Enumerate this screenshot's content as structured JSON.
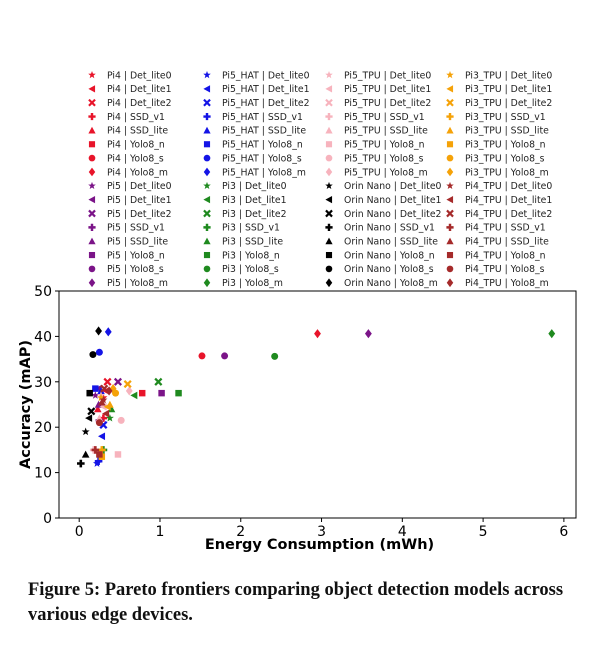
{
  "caption": "Figure 5: Pareto frontiers comparing object detection models across various edge devices.",
  "chart_data": {
    "type": "scatter",
    "xlabel": "Energy Consumption (mWh)",
    "ylabel": "Accuracy (mAP)",
    "xlim": [
      -0.25,
      6.15
    ],
    "ylim": [
      0,
      50
    ],
    "xticks": [
      0,
      1,
      2,
      3,
      4,
      5,
      6
    ],
    "yticks": [
      0,
      10,
      20,
      30,
      40,
      50
    ],
    "grid": false,
    "legend_placement": "top, outside plot, 4 columns",
    "models": [
      "Det_lite0",
      "Det_lite1",
      "Det_lite2",
      "SSD_v1",
      "SSD_lite",
      "Yolo8_n",
      "Yolo8_s",
      "Yolo8_m"
    ],
    "marker_styles": [
      "star",
      "triangle-left",
      "x-mark",
      "plus",
      "triangle-up",
      "square",
      "circle",
      "diamond"
    ],
    "series": [
      {
        "name": "Pi4 | Det_lite0",
        "color": "#e8142a",
        "marker": "star",
        "x": [
          0.3
        ],
        "y": [
          26.5
        ]
      },
      {
        "name": "Pi4 | Det_lite1",
        "color": "#e8142a",
        "marker": "triangle-left",
        "x": [
          0.33
        ],
        "y": [
          28.0
        ]
      },
      {
        "name": "Pi4 | Det_lite2",
        "color": "#e8142a",
        "marker": "x-mark",
        "x": [
          0.35
        ],
        "y": [
          30.0
        ]
      },
      {
        "name": "Pi4 | SSD_v1",
        "color": "#e8142a",
        "marker": "plus",
        "x": [
          0.3
        ],
        "y": [
          22.0
        ]
      },
      {
        "name": "Pi4 | SSD_lite",
        "color": "#e8142a",
        "marker": "triangle-up",
        "x": [
          0.23
        ],
        "y": [
          24.0
        ]
      },
      {
        "name": "Pi4 | Yolo8_n",
        "color": "#e8142a",
        "marker": "square",
        "x": [
          0.78
        ],
        "y": [
          27.5
        ]
      },
      {
        "name": "Pi4 | Yolo8_s",
        "color": "#e8142a",
        "marker": "circle",
        "x": [
          1.52
        ],
        "y": [
          35.7
        ]
      },
      {
        "name": "Pi4 | Yolo8_m",
        "color": "#e8142a",
        "marker": "diamond",
        "x": [
          2.95
        ],
        "y": [
          40.6
        ]
      },
      {
        "name": "Pi5 | Det_lite0",
        "color": "#7b1488",
        "marker": "star",
        "x": [
          0.2
        ],
        "y": [
          27.0
        ]
      },
      {
        "name": "Pi5 | Det_lite1",
        "color": "#7b1488",
        "marker": "triangle-left",
        "x": [
          0.24
        ],
        "y": [
          28.5
        ]
      },
      {
        "name": "Pi5 | Det_lite2",
        "color": "#7b1488",
        "marker": "x-mark",
        "x": [
          0.48
        ],
        "y": [
          30.0
        ]
      },
      {
        "name": "Pi5 | SSD_v1",
        "color": "#7b1488",
        "marker": "plus",
        "x": [
          0.25
        ],
        "y": [
          21.5
        ]
      },
      {
        "name": "Pi5 | SSD_lite",
        "color": "#7b1488",
        "marker": "triangle-up",
        "x": [
          0.24
        ],
        "y": [
          25.0
        ]
      },
      {
        "name": "Pi5 | Yolo8_n",
        "color": "#7b1488",
        "marker": "square",
        "x": [
          1.02
        ],
        "y": [
          27.5
        ]
      },
      {
        "name": "Pi5 | Yolo8_s",
        "color": "#7b1488",
        "marker": "circle",
        "x": [
          1.8
        ],
        "y": [
          35.7
        ]
      },
      {
        "name": "Pi5 | Yolo8_m",
        "color": "#7b1488",
        "marker": "diamond",
        "x": [
          3.58
        ],
        "y": [
          40.6
        ]
      },
      {
        "name": "Pi5_HAT | Det_lite0",
        "color": "#1414e6",
        "marker": "star",
        "x": [
          0.22
        ],
        "y": [
          12.0
        ]
      },
      {
        "name": "Pi5_HAT | Det_lite1",
        "color": "#1414e6",
        "marker": "triangle-left",
        "x": [
          0.28
        ],
        "y": [
          18.0
        ]
      },
      {
        "name": "Pi5_HAT | Det_lite2",
        "color": "#1414e6",
        "marker": "x-mark",
        "x": [
          0.3
        ],
        "y": [
          20.5
        ]
      },
      {
        "name": "Pi5_HAT | SSD_v1",
        "color": "#1414e6",
        "marker": "plus",
        "x": [
          0.24
        ],
        "y": [
          12.5
        ]
      },
      {
        "name": "Pi5_HAT | SSD_lite",
        "color": "#1414e6",
        "marker": "triangle-up",
        "x": [
          0.27
        ],
        "y": [
          28.0
        ]
      },
      {
        "name": "Pi5_HAT | Yolo8_n",
        "color": "#1414e6",
        "marker": "square",
        "x": [
          0.2
        ],
        "y": [
          28.5
        ]
      },
      {
        "name": "Pi5_HAT | Yolo8_s",
        "color": "#1414e6",
        "marker": "circle",
        "x": [
          0.25
        ],
        "y": [
          36.5
        ]
      },
      {
        "name": "Pi5_HAT | Yolo8_m",
        "color": "#1414e6",
        "marker": "diamond",
        "x": [
          0.36
        ],
        "y": [
          41.0
        ]
      },
      {
        "name": "Pi3 | Det_lite0",
        "color": "#1f8a1f",
        "marker": "star",
        "x": [
          0.38
        ],
        "y": [
          22.0
        ]
      },
      {
        "name": "Pi3 | Det_lite1",
        "color": "#1f8a1f",
        "marker": "triangle-left",
        "x": [
          0.68
        ],
        "y": [
          27.0
        ]
      },
      {
        "name": "Pi3 | Det_lite2",
        "color": "#1f8a1f",
        "marker": "x-mark",
        "x": [
          0.98
        ],
        "y": [
          30.0
        ]
      },
      {
        "name": "Pi3 | SSD_v1",
        "color": "#1f8a1f",
        "marker": "plus",
        "x": [
          0.3
        ],
        "y": [
          15.0
        ]
      },
      {
        "name": "Pi3 | SSD_lite",
        "color": "#1f8a1f",
        "marker": "triangle-up",
        "x": [
          0.4
        ],
        "y": [
          24.0
        ]
      },
      {
        "name": "Pi3 | Yolo8_n",
        "color": "#1f8a1f",
        "marker": "square",
        "x": [
          1.23
        ],
        "y": [
          27.5
        ]
      },
      {
        "name": "Pi3 | Yolo8_s",
        "color": "#1f8a1f",
        "marker": "circle",
        "x": [
          2.42
        ],
        "y": [
          35.6
        ]
      },
      {
        "name": "Pi3 | Yolo8_m",
        "color": "#1f8a1f",
        "marker": "diamond",
        "x": [
          5.85
        ],
        "y": [
          40.6
        ]
      },
      {
        "name": "Pi5_TPU | Det_lite0",
        "color": "#f7b3bd",
        "marker": "star",
        "x": [
          0.27
        ],
        "y": [
          27.0
        ]
      },
      {
        "name": "Pi5_TPU | Det_lite1",
        "color": "#f7b3bd",
        "marker": "triangle-left",
        "x": [
          0.3
        ],
        "y": [
          24.5
        ]
      },
      {
        "name": "Pi5_TPU | Det_lite2",
        "color": "#f7b3bd",
        "marker": "x-mark",
        "x": [
          0.4
        ],
        "y": [
          28.0
        ]
      },
      {
        "name": "Pi5_TPU | SSD_v1",
        "color": "#f7b3bd",
        "marker": "plus",
        "x": [
          0.18
        ],
        "y": [
          15.0
        ]
      },
      {
        "name": "Pi5_TPU | SSD_lite",
        "color": "#f7b3bd",
        "marker": "triangle-up",
        "x": [
          0.25
        ],
        "y": [
          22.0
        ]
      },
      {
        "name": "Pi5_TPU | Yolo8_n",
        "color": "#f7b3bd",
        "marker": "square",
        "x": [
          0.48
        ],
        "y": [
          14.0
        ]
      },
      {
        "name": "Pi5_TPU | Yolo8_s",
        "color": "#f7b3bd",
        "marker": "circle",
        "x": [
          0.52
        ],
        "y": [
          21.5
        ]
      },
      {
        "name": "Pi5_TPU | Yolo8_m",
        "color": "#f7b3bd",
        "marker": "diamond",
        "x": [
          0.62
        ],
        "y": [
          28.0
        ]
      },
      {
        "name": "Orin Nano | Det_lite0",
        "color": "#000000",
        "marker": "star",
        "x": [
          0.08
        ],
        "y": [
          19.0
        ]
      },
      {
        "name": "Orin Nano | Det_lite1",
        "color": "#000000",
        "marker": "triangle-left",
        "x": [
          0.12
        ],
        "y": [
          22.0
        ]
      },
      {
        "name": "Orin Nano | Det_lite2",
        "color": "#000000",
        "marker": "x-mark",
        "x": [
          0.15
        ],
        "y": [
          23.5
        ]
      },
      {
        "name": "Orin Nano | SSD_v1",
        "color": "#000000",
        "marker": "plus",
        "x": [
          0.02
        ],
        "y": [
          12.0
        ]
      },
      {
        "name": "Orin Nano | SSD_lite",
        "color": "#000000",
        "marker": "triangle-up",
        "x": [
          0.08
        ],
        "y": [
          14.0
        ]
      },
      {
        "name": "Orin Nano | Yolo8_n",
        "color": "#000000",
        "marker": "square",
        "x": [
          0.13
        ],
        "y": [
          27.5
        ]
      },
      {
        "name": "Orin Nano | Yolo8_s",
        "color": "#000000",
        "marker": "circle",
        "x": [
          0.17
        ],
        "y": [
          36.0
        ]
      },
      {
        "name": "Orin Nano | Yolo8_m",
        "color": "#000000",
        "marker": "diamond",
        "x": [
          0.24
        ],
        "y": [
          41.2
        ]
      },
      {
        "name": "Pi3_TPU | Det_lite0",
        "color": "#f5a208",
        "marker": "star",
        "x": [
          0.27
        ],
        "y": [
          26.5
        ]
      },
      {
        "name": "Pi3_TPU | Det_lite1",
        "color": "#f5a208",
        "marker": "triangle-left",
        "x": [
          0.35
        ],
        "y": [
          24.5
        ]
      },
      {
        "name": "Pi3_TPU | Det_lite2",
        "color": "#f5a208",
        "marker": "x-mark",
        "x": [
          0.6
        ],
        "y": [
          29.5
        ]
      },
      {
        "name": "Pi3_TPU | SSD_v1",
        "color": "#f5a208",
        "marker": "plus",
        "x": [
          0.28
        ],
        "y": [
          15.0
        ]
      },
      {
        "name": "Pi3_TPU | SSD_lite",
        "color": "#f5a208",
        "marker": "triangle-up",
        "x": [
          0.38
        ],
        "y": [
          25.0
        ]
      },
      {
        "name": "Pi3_TPU | Yolo8_n",
        "color": "#f5a208",
        "marker": "square",
        "x": [
          0.28
        ],
        "y": [
          13.5
        ]
      },
      {
        "name": "Pi3_TPU | Yolo8_s",
        "color": "#f5a208",
        "marker": "circle",
        "x": [
          0.45
        ],
        "y": [
          27.5
        ]
      },
      {
        "name": "Pi3_TPU | Yolo8_m",
        "color": "#f5a208",
        "marker": "diamond",
        "x": [
          0.42
        ],
        "y": [
          28.5
        ]
      },
      {
        "name": "Pi4_TPU | Det_lite0",
        "color": "#a52a2a",
        "marker": "star",
        "x": [
          0.3
        ],
        "y": [
          26.0
        ]
      },
      {
        "name": "Pi4_TPU | Det_lite1",
        "color": "#a52a2a",
        "marker": "triangle-left",
        "x": [
          0.33
        ],
        "y": [
          23.0
        ]
      },
      {
        "name": "Pi4_TPU | Det_lite2",
        "color": "#a52a2a",
        "marker": "x-mark",
        "x": [
          0.31
        ],
        "y": [
          28.5
        ]
      },
      {
        "name": "Pi4_TPU | SSD_v1",
        "color": "#a52a2a",
        "marker": "plus",
        "x": [
          0.2
        ],
        "y": [
          15.0
        ]
      },
      {
        "name": "Pi4_TPU | SSD_lite",
        "color": "#a52a2a",
        "marker": "triangle-up",
        "x": [
          0.28
        ],
        "y": [
          25.5
        ]
      },
      {
        "name": "Pi4_TPU | Yolo8_n",
        "color": "#a52a2a",
        "marker": "square",
        "x": [
          0.25
        ],
        "y": [
          14.0
        ]
      },
      {
        "name": "Pi4_TPU | Yolo8_s",
        "color": "#a52a2a",
        "marker": "circle",
        "x": [
          0.25
        ],
        "y": [
          21.0
        ]
      },
      {
        "name": "Pi4_TPU | Yolo8_m",
        "color": "#a52a2a",
        "marker": "diamond",
        "x": [
          0.37
        ],
        "y": [
          28.0
        ]
      }
    ]
  }
}
